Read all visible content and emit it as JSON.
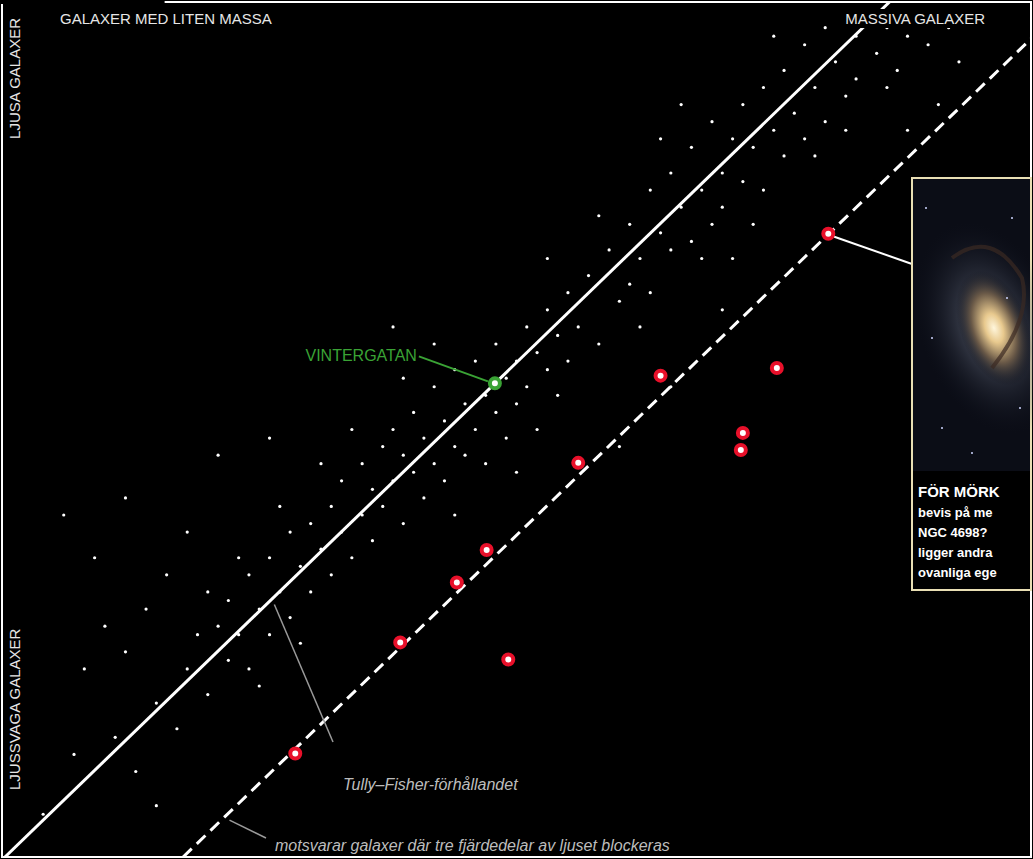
{
  "chart_data": {
    "type": "scatter",
    "xlabel": {
      "low": "GALAXER MED LITEN MASSA",
      "high": "MASSIVA GALAXER"
    },
    "ylabel": {
      "low": "LJUSSVAGA GALAXER",
      "high": "LJUSA GALAXER"
    },
    "xlim": [
      0,
      100
    ],
    "ylim": [
      0,
      100
    ],
    "tick_labels": false,
    "grid": false,
    "inset_caption": [
      "FÖR MÖRK",
      "bevis på me",
      "NGC 4698?",
      "ligger andra",
      "ovanliga ege"
    ],
    "series": [
      {
        "type": "scatter",
        "color": "#ffffff",
        "marker": "dot",
        "x": [
          56,
          57,
          58,
          59,
          60,
          61,
          61,
          62,
          63,
          63,
          64,
          65,
          65,
          66,
          67,
          67,
          68,
          69,
          69,
          70,
          70,
          71,
          72,
          72,
          73,
          74,
          74,
          75,
          76,
          76,
          77,
          78,
          78,
          79,
          80,
          80,
          81,
          82,
          83,
          83,
          84,
          85,
          86,
          87,
          88,
          89,
          90,
          92,
          93,
          95,
          64,
          68,
          73,
          79,
          58,
          62,
          66,
          71,
          75,
          82,
          86,
          35,
          35,
          36,
          36,
          37,
          37,
          38,
          38,
          39,
          39,
          40,
          40,
          41,
          41,
          42,
          42,
          43,
          43,
          44,
          44,
          45,
          45,
          46,
          46,
          47,
          47,
          48,
          48,
          49,
          49,
          50,
          50,
          51,
          51,
          52,
          52,
          53,
          53,
          54,
          54,
          55,
          55,
          34,
          39,
          44,
          50,
          53,
          42,
          18,
          19,
          20,
          21,
          22,
          22,
          23,
          24,
          24,
          25,
          26,
          26,
          27,
          28,
          28,
          29,
          30,
          30,
          31,
          32,
          32,
          33,
          34,
          33,
          27,
          23,
          20,
          31,
          25,
          29,
          4,
          7,
          8,
          10,
          11,
          12,
          13,
          14,
          15,
          16,
          17,
          18,
          9,
          6,
          12,
          15,
          21,
          26,
          60,
          65,
          88,
          91,
          38,
          70
        ],
        "values": [
          62,
          68,
          60,
          71,
          65,
          74,
          67,
          70,
          78,
          66,
          73,
          80,
          71,
          76,
          72,
          83,
          78,
          74,
          86,
          80,
          76,
          84,
          79,
          88,
          83,
          78,
          90,
          85,
          82,
          92,
          87,
          84,
          95,
          90,
          86,
          97,
          93,
          89,
          96,
          91,
          99,
          94,
          97,
          92,
          96,
          99,
          95,
          97,
          93,
          98,
          84,
          70,
          74,
          82,
          75,
          62,
          88,
          70,
          96,
          85,
          90,
          40,
          46,
          37,
          43,
          48,
          41,
          44,
          50,
          39,
          47,
          45,
          52,
          42,
          49,
          55,
          46,
          51,
          44,
          48,
          57,
          53,
          47,
          50,
          58,
          54,
          46,
          60,
          52,
          56,
          49,
          58,
          53,
          62,
          55,
          59,
          50,
          64,
          57,
          61,
          54,
          66,
          58,
          50,
          56,
          40,
          45,
          70,
          60,
          22,
          26,
          19,
          27,
          23,
          30,
          26,
          33,
          22,
          29,
          35,
          26,
          31,
          38,
          28,
          34,
          31,
          39,
          36,
          33,
          41,
          38,
          35,
          44,
          41,
          35,
          31,
          46,
          20,
          25,
          5,
          12,
          22,
          27,
          14,
          24,
          10,
          29,
          18,
          33,
          15,
          38,
          35,
          40,
          42,
          6,
          47,
          49,
          48,
          55,
          85,
          88,
          62,
          64
        ]
      },
      {
        "type": "scatter",
        "color": "#e8102a",
        "marker": "ring",
        "x": [
          80.3,
          75.3,
          64.0,
          72.0,
          71.8,
          56.0,
          47.1,
          44.2,
          38.7,
          49.2,
          28.5
        ],
        "values": [
          72.9,
          57.2,
          56.3,
          49.6,
          47.6,
          46.1,
          35.9,
          32.1,
          25.1,
          23.1,
          12.1
        ]
      },
      {
        "type": "scatter",
        "name": "VINTERGATAN",
        "color": "#3aa335",
        "marker": "ring",
        "x": [
          47.9
        ],
        "values": [
          55.4
        ]
      },
      {
        "type": "line",
        "name": "Tully–Fisher-förhållandet",
        "color": "#ffffff",
        "line_style": "solid",
        "x": [
          0.29,
          86.25
        ],
        "values": [
          0,
          100
        ]
      },
      {
        "type": "line",
        "name": "motsvarar galaxer där tre fjärdedelar av ljuset blockeras",
        "color": "#ffffff",
        "line_style": "dashed",
        "x": [
          17.6,
          100
        ],
        "values": [
          0,
          95.7
        ]
      }
    ]
  }
}
